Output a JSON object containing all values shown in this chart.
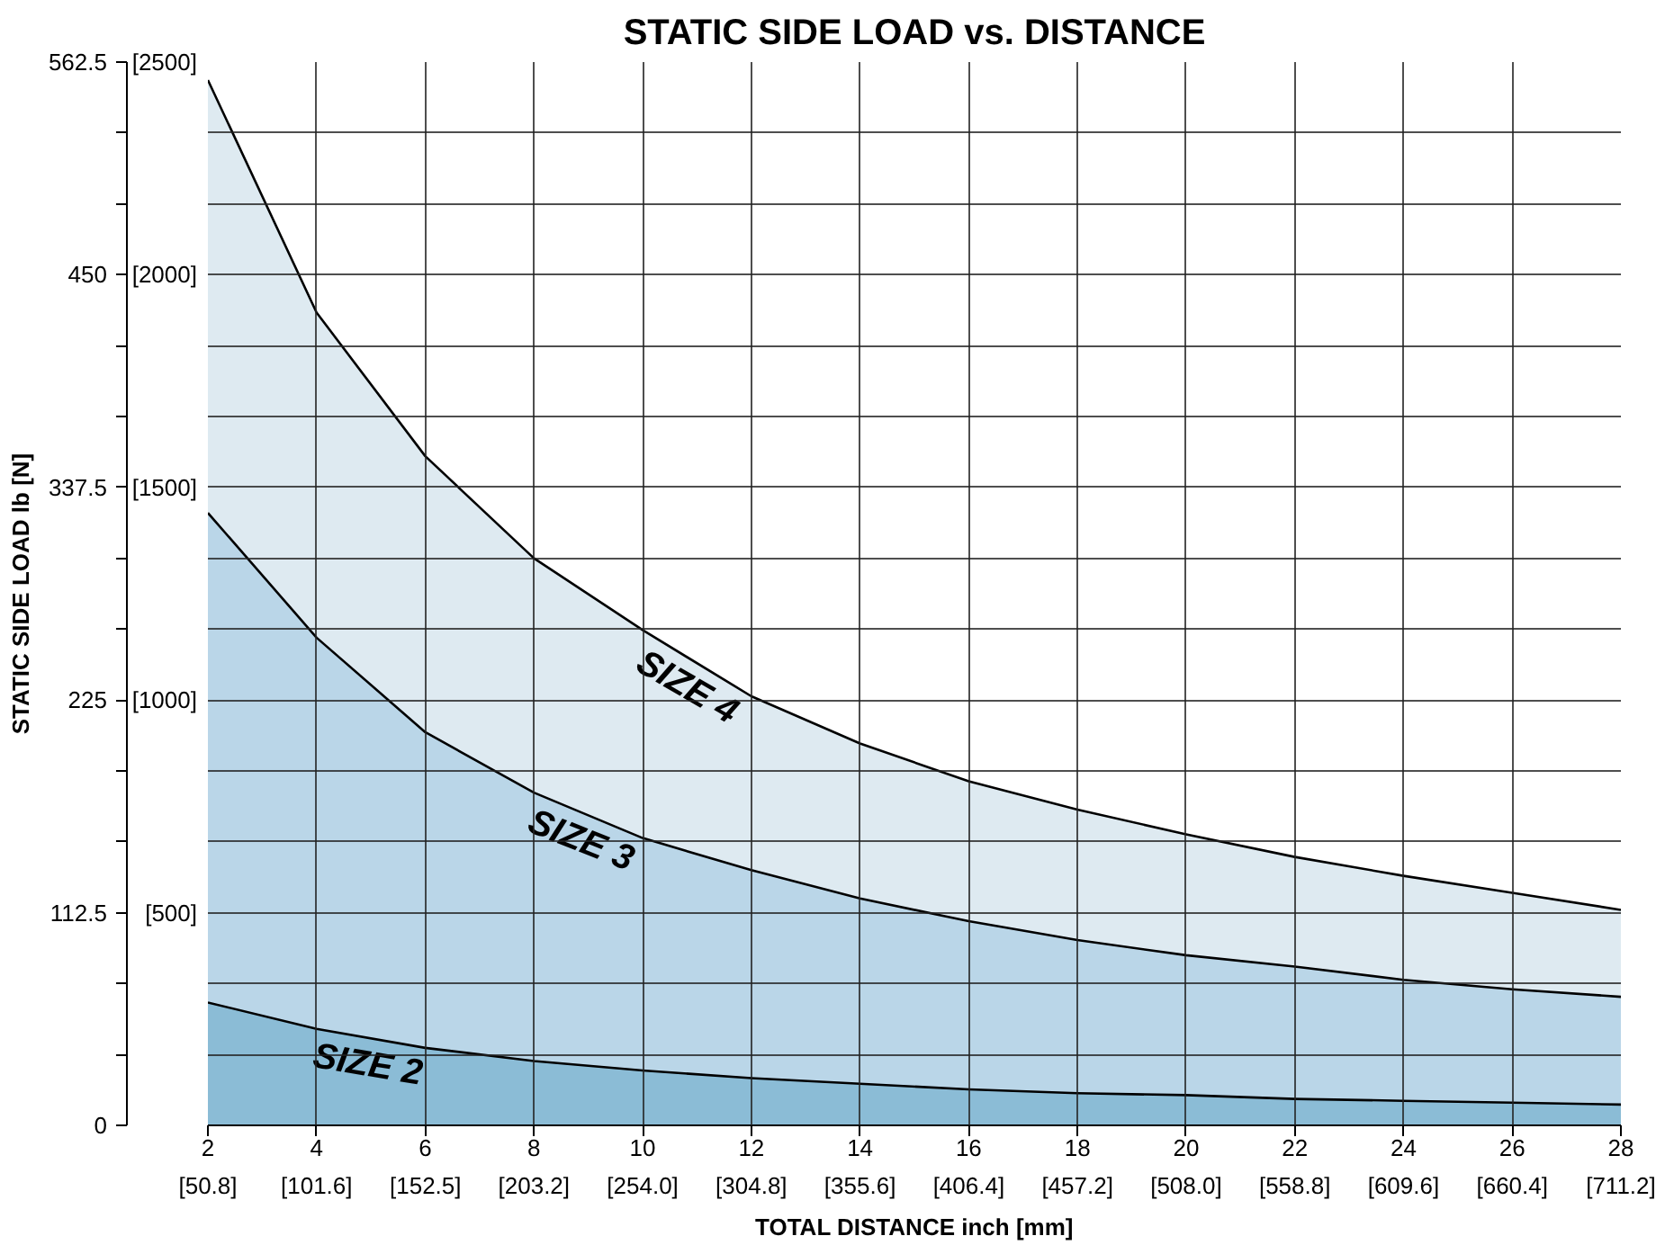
{
  "chart_data": {
    "type": "area",
    "title": "STATIC SIDE LOAD vs. DISTANCE",
    "xlabel": "TOTAL DISTANCE inch [mm]",
    "ylabel": "STATIC SIDE LOAD lb [N]",
    "x": [
      2,
      4,
      6,
      8,
      10,
      12,
      14,
      16,
      18,
      20,
      22,
      24,
      26,
      28
    ],
    "series": [
      {
        "name": "SIZE 4",
        "color": "#deeaf1",
        "values": [
          553,
          430,
          354,
          300,
          262,
          227,
          202,
          182,
          167,
          154,
          142,
          132,
          123,
          114
        ]
      },
      {
        "name": "SIZE 3",
        "color": "#bad6e8",
        "values": [
          324,
          258,
          208,
          176,
          152,
          135,
          120,
          108,
          98,
          90,
          84,
          77,
          72,
          68
        ]
      },
      {
        "name": "SIZE 2",
        "color": "#8bbcd6",
        "values": [
          65,
          51,
          41,
          34,
          29,
          25,
          22,
          19,
          17,
          16,
          14,
          13,
          12,
          11
        ]
      }
    ],
    "xlim": [
      2,
      28
    ],
    "ylim": [
      0,
      562.5
    ],
    "xticks": [
      2,
      4,
      6,
      8,
      10,
      12,
      14,
      16,
      18,
      20,
      22,
      24,
      26,
      28
    ],
    "x2lim": [
      50.8,
      711.2
    ],
    "x2ticks": [
      {
        "value": 50.8,
        "label": "[50.8]"
      },
      {
        "value": 101.6,
        "label": "[101.6]"
      },
      {
        "value": 152.5,
        "label": "[152.5]"
      },
      {
        "value": 203.2,
        "label": "[203.2]"
      },
      {
        "value": 254.0,
        "label": "[254.0]"
      },
      {
        "value": 304.8,
        "label": "[304.8]"
      },
      {
        "value": 355.6,
        "label": "[355.6]"
      },
      {
        "value": 406.4,
        "label": "[406.4]"
      },
      {
        "value": 457.2,
        "label": "[457.2]"
      },
      {
        "value": 508.0,
        "label": "[508.0]"
      },
      {
        "value": 558.8,
        "label": "[558.8]"
      },
      {
        "value": 609.6,
        "label": "[609.6]"
      },
      {
        "value": 660.4,
        "label": "[660.4]"
      },
      {
        "value": 711.2,
        "label": "[711.2]"
      }
    ],
    "yticks": [
      0,
      {
        "value": 37.5,
        "label": null
      },
      {
        "value": 75,
        "label": null
      },
      112.5,
      {
        "value": 150,
        "label": null
      },
      {
        "value": 187.5,
        "label": null
      },
      225,
      {
        "value": 262.5,
        "label": null
      },
      {
        "value": 300,
        "label": null
      },
      337.5,
      {
        "value": 375,
        "label": null
      },
      {
        "value": 412.5,
        "label": null
      },
      450,
      {
        "value": 487.5,
        "label": null
      },
      {
        "value": 525,
        "label": null
      },
      562.5
    ],
    "y2lim": [
      0,
      2500
    ],
    "y2ticks": [
      {
        "value": 500,
        "label": "[500]"
      },
      {
        "value": 1000,
        "label": "[1000]"
      },
      {
        "value": 1500,
        "label": "[1500]"
      },
      {
        "value": 2000,
        "label": "[2000]"
      },
      {
        "value": 2500,
        "label": "[2500]"
      }
    ],
    "grid": true
  }
}
